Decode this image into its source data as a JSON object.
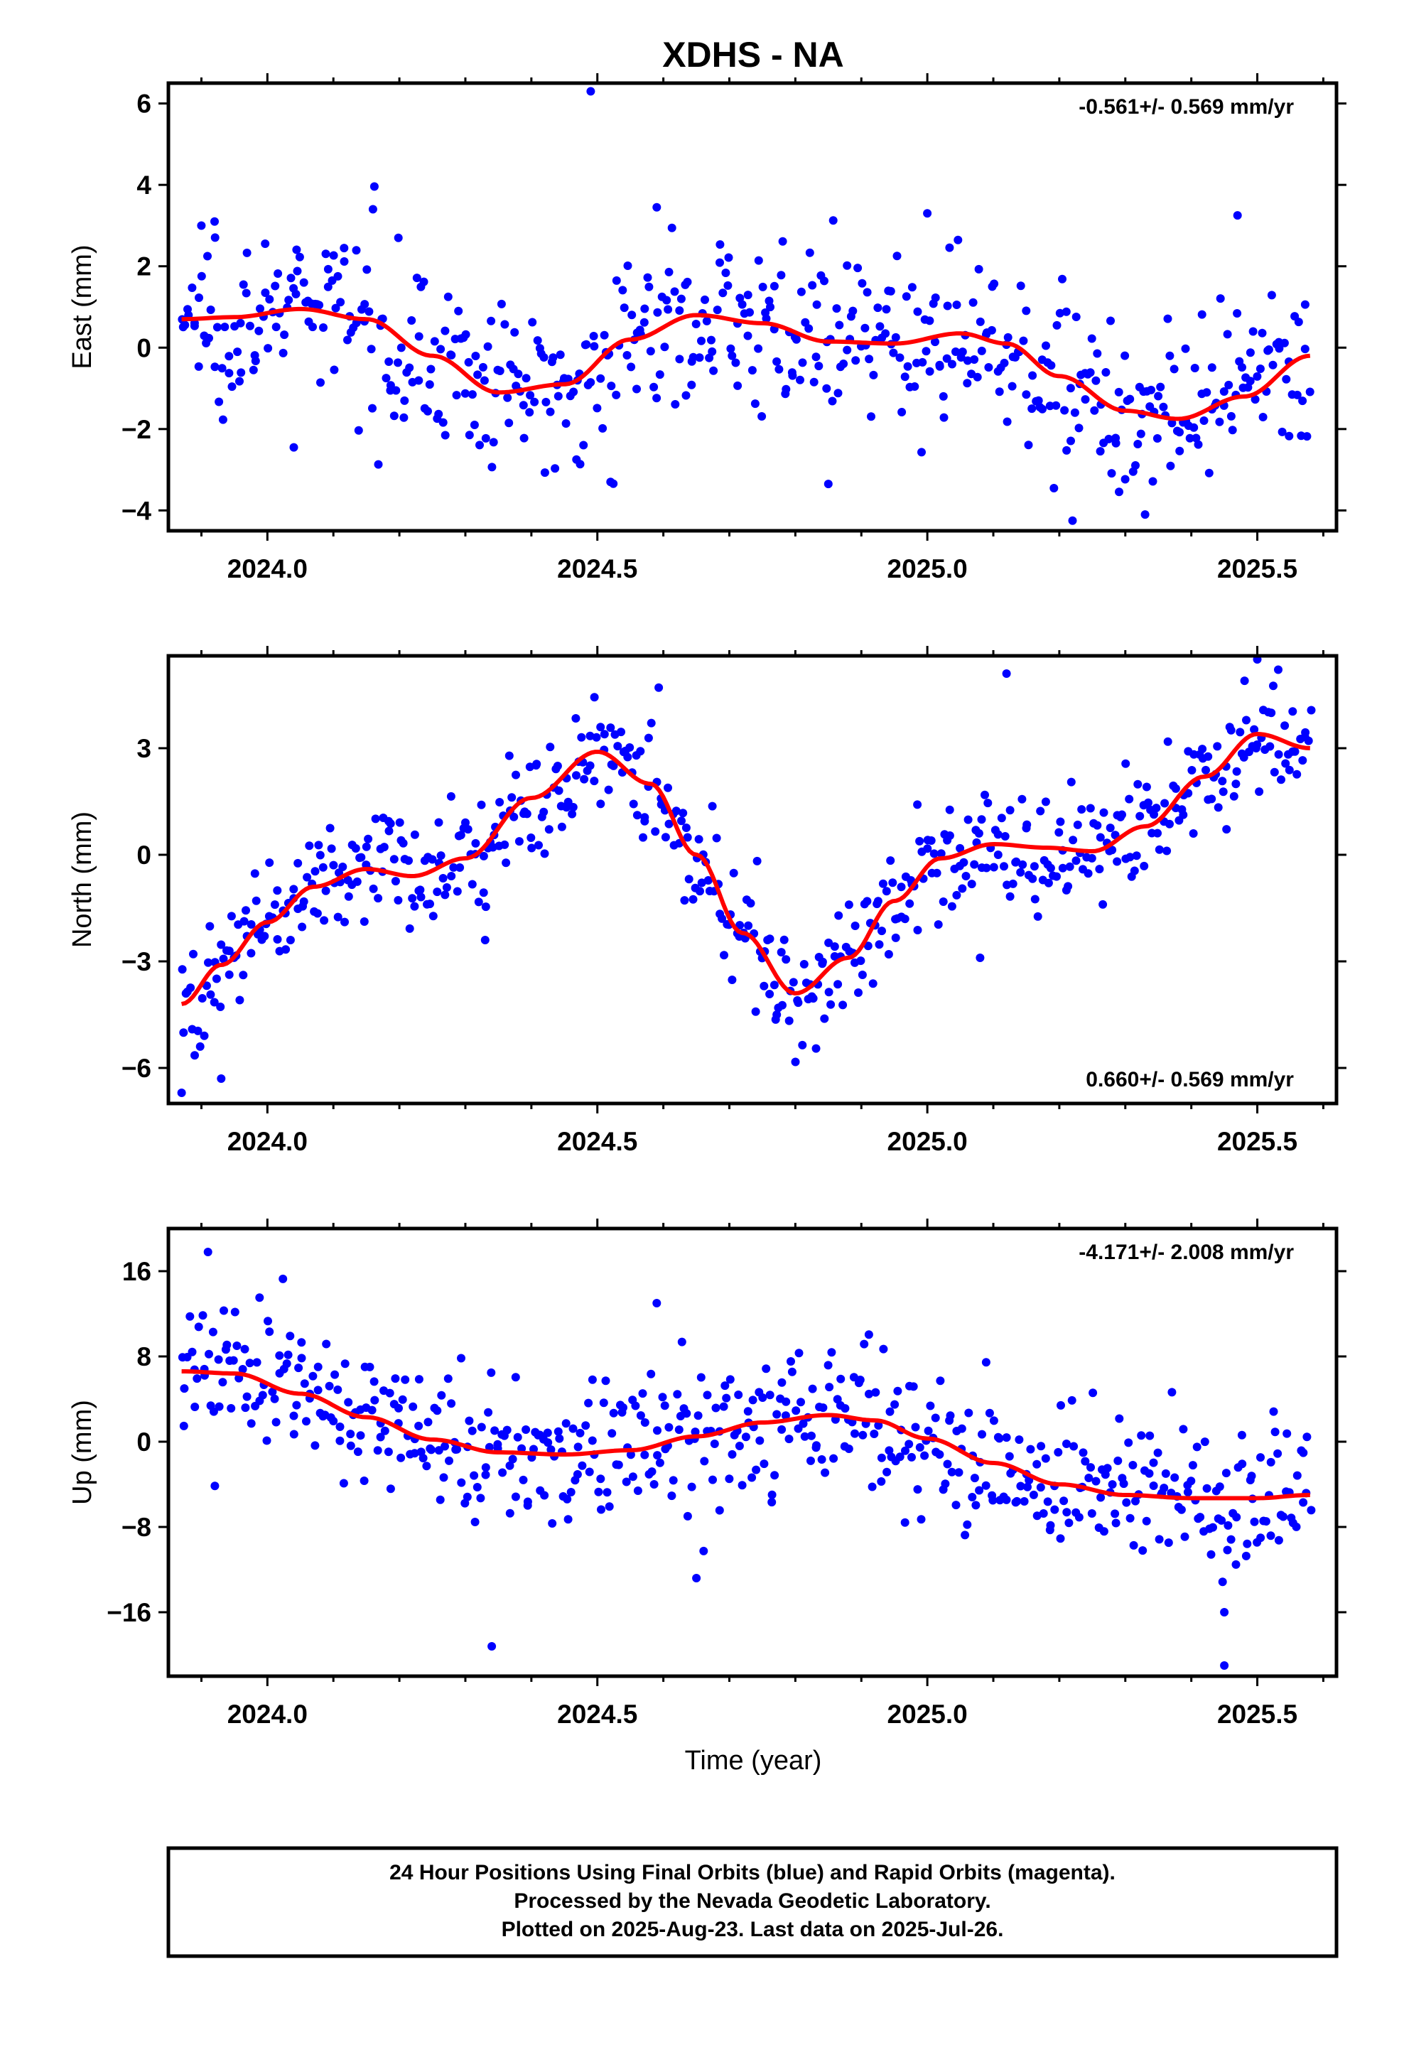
{
  "title": "XDHS - NA",
  "xlabel": "Time (year)",
  "footer": [
    "24 Hour Positions Using Final Orbits (blue) and Rapid Orbits (magenta).",
    "Processed by the Nevada Geodetic Laboratory.",
    "Plotted on 2025-Aug-23. Last data on 2025-Jul-26."
  ],
  "colors": {
    "points": "#0000ff",
    "fit": "#ff0000",
    "frame": "#000000"
  },
  "chart_data": [
    {
      "type": "scatter",
      "ylabel": "East (mm)",
      "rate": "-0.561+/- 0.569 mm/yr",
      "rate_position": "top-right",
      "xlim": [
        2023.85,
        2025.62
      ],
      "ylim": [
        -4.5,
        6.5
      ],
      "xticks": [
        2024.0,
        2024.5,
        2025.0,
        2025.5
      ],
      "xtick_labels": [
        "2024.0",
        "2024.5",
        "2025.0",
        "2025.5"
      ],
      "yticks": [
        -4,
        -2,
        0,
        2,
        4,
        6
      ],
      "ytick_labels": [
        "−4",
        "−2",
        "0",
        "2",
        "4",
        "6"
      ],
      "grid": false,
      "fit": {
        "name": "fit",
        "x": [
          2023.87,
          2023.95,
          2024.05,
          2024.15,
          2024.25,
          2024.35,
          2024.45,
          2024.55,
          2024.65,
          2024.75,
          2024.85,
          2024.95,
          2025.05,
          2025.12,
          2025.2,
          2025.3,
          2025.38,
          2025.48,
          2025.58
        ],
        "y": [
          0.7,
          0.75,
          0.95,
          0.7,
          -0.2,
          -1.1,
          -0.9,
          0.2,
          0.8,
          0.6,
          0.15,
          0.1,
          0.35,
          0.1,
          -0.7,
          -1.55,
          -1.75,
          -1.2,
          -0.2
        ]
      },
      "scatter_model": {
        "count": 560,
        "noise_sd": 1.0,
        "outliers": [
          [
            2024.49,
            6.3
          ],
          [
            2024.59,
            3.45
          ],
          [
            2025.0,
            3.3
          ],
          [
            2025.47,
            3.25
          ],
          [
            2024.04,
            -2.45
          ],
          [
            2025.22,
            -4.25
          ],
          [
            2025.33,
            -4.1
          ],
          [
            2024.85,
            -3.35
          ],
          [
            2024.52,
            -3.3
          ],
          [
            2023.9,
            3.0
          ],
          [
            2023.92,
            3.1
          ],
          [
            2024.16,
            3.4
          ]
        ]
      }
    },
    {
      "type": "scatter",
      "ylabel": "North (mm)",
      "rate": "0.660+/- 0.569 mm/yr",
      "rate_position": "bottom-right",
      "xlim": [
        2023.85,
        2025.62
      ],
      "ylim": [
        -7,
        5.6
      ],
      "xticks": [
        2024.0,
        2024.5,
        2025.0,
        2025.5
      ],
      "xtick_labels": [
        "2024.0",
        "2024.5",
        "2025.0",
        "2025.5"
      ],
      "yticks": [
        -6,
        -3,
        0,
        3
      ],
      "ytick_labels": [
        "−6",
        "−3",
        "0",
        "3"
      ],
      "grid": false,
      "fit": {
        "name": "fit",
        "x": [
          2023.87,
          2023.93,
          2024.0,
          2024.07,
          2024.15,
          2024.22,
          2024.3,
          2024.4,
          2024.5,
          2024.58,
          2024.65,
          2024.72,
          2024.8,
          2024.88,
          2024.95,
          2025.02,
          2025.1,
          2025.18,
          2025.25,
          2025.33,
          2025.42,
          2025.5,
          2025.58
        ],
        "y": [
          -4.2,
          -3.1,
          -1.9,
          -0.9,
          -0.4,
          -0.6,
          -0.1,
          1.6,
          2.9,
          2.0,
          0.0,
          -2.2,
          -3.9,
          -2.9,
          -1.3,
          -0.1,
          0.3,
          0.2,
          0.1,
          0.8,
          2.2,
          3.4,
          3.0
        ]
      },
      "scatter_model": {
        "count": 560,
        "noise_sd": 0.85,
        "outliers": [
          [
            2023.87,
            -6.7
          ],
          [
            2023.93,
            -6.3
          ],
          [
            2025.12,
            5.1
          ],
          [
            2025.5,
            5.5
          ],
          [
            2024.33,
            -2.4
          ],
          [
            2025.08,
            -2.9
          ]
        ]
      }
    },
    {
      "type": "scatter",
      "ylabel": "Up (mm)",
      "rate": "-4.171+/- 2.008 mm/yr",
      "rate_position": "top-right",
      "xlim": [
        2023.85,
        2025.62
      ],
      "ylim": [
        -22,
        20
      ],
      "xticks": [
        2024.0,
        2024.5,
        2025.0,
        2025.5
      ],
      "xtick_labels": [
        "2024.0",
        "2024.5",
        "2025.0",
        "2025.5"
      ],
      "yticks": [
        -16,
        -8,
        0,
        8,
        16
      ],
      "ytick_labels": [
        "−16",
        "−8",
        "0",
        "8",
        "16"
      ],
      "grid": false,
      "fit": {
        "name": "fit",
        "x": [
          2023.87,
          2023.95,
          2024.05,
          2024.15,
          2024.25,
          2024.35,
          2024.45,
          2024.55,
          2024.65,
          2024.75,
          2024.85,
          2024.92,
          2025.0,
          2025.1,
          2025.2,
          2025.3,
          2025.4,
          2025.5,
          2025.58
        ],
        "y": [
          6.6,
          6.4,
          4.5,
          2.3,
          0.2,
          -1.0,
          -1.2,
          -0.8,
          0.5,
          1.8,
          2.5,
          2.0,
          0.3,
          -2.0,
          -4.0,
          -5.0,
          -5.3,
          -5.3,
          -5.0
        ]
      },
      "scatter_model": {
        "count": 560,
        "noise_sd": 3.4,
        "outliers": [
          [
            2023.91,
            17.8
          ],
          [
            2024.59,
            13.0
          ],
          [
            2024.34,
            -19.2
          ],
          [
            2025.45,
            -21.0
          ],
          [
            2025.45,
            -16.0
          ],
          [
            2024.65,
            -12.8
          ]
        ]
      }
    }
  ]
}
